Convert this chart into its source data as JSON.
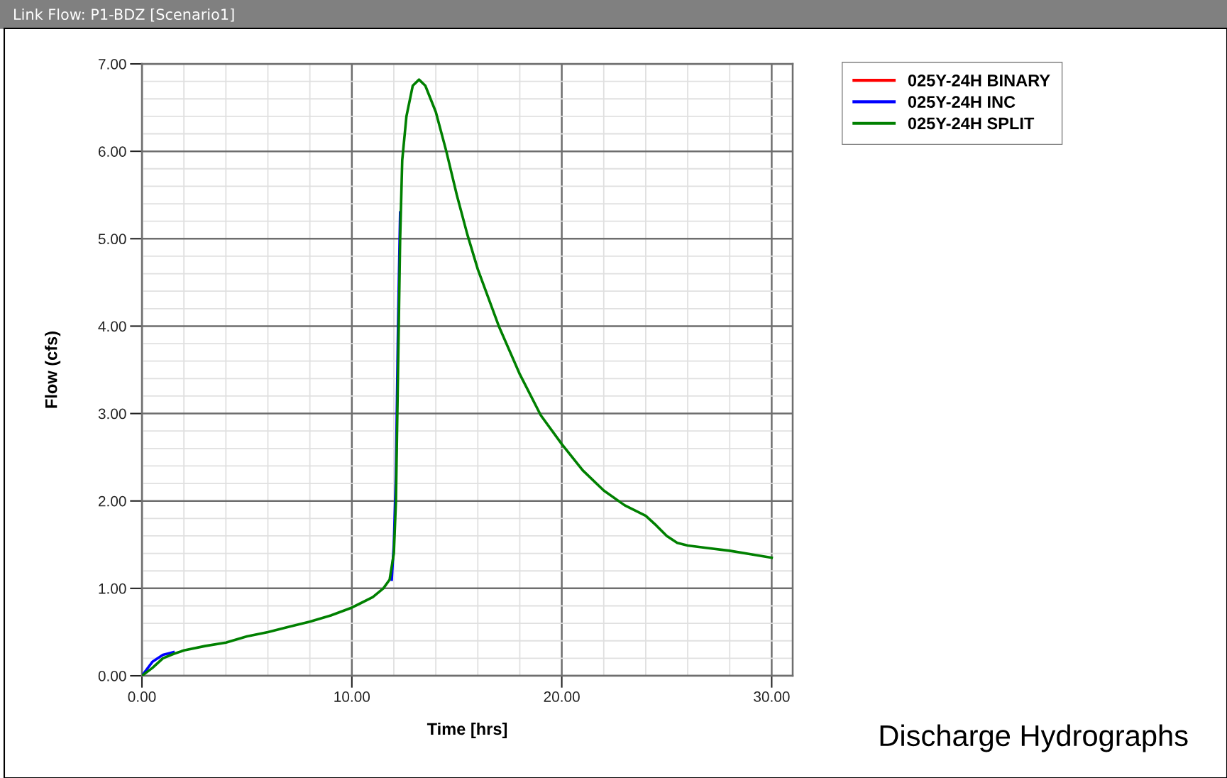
{
  "chart_data": {
    "type": "line",
    "title": "Link Flow: P1-BDZ [Scenario1]",
    "xlabel": "Time [hrs]",
    "ylabel": "Flow (cfs)",
    "annotations": [
      "Discharge Hydrographs"
    ],
    "x": [
      0,
      0.5,
      1,
      1.5,
      2,
      3,
      4,
      5,
      6,
      7,
      8,
      9,
      10,
      11,
      11.5,
      11.8,
      12,
      12.1,
      12.2,
      12.3,
      12.4,
      12.6,
      12.9,
      13.2,
      13.5,
      14,
      14.5,
      15,
      15.5,
      16,
      17,
      18,
      19,
      20,
      21,
      22,
      23,
      24,
      24.5,
      25,
      25.5,
      26,
      27,
      28,
      29,
      30
    ],
    "series": [
      {
        "name": "025Y-24H BINARY",
        "color": "#ff0000",
        "values": [
          null,
          null,
          null,
          null,
          null,
          null,
          null,
          null,
          null,
          null,
          null,
          null,
          null,
          null,
          null,
          null,
          null,
          null,
          null,
          null,
          null,
          null,
          null,
          null,
          null,
          null,
          null,
          null,
          null,
          null,
          null,
          null,
          null,
          null,
          null,
          null,
          null,
          null,
          null,
          null,
          null,
          null,
          null,
          null,
          null,
          null
        ]
      },
      {
        "name": "025Y-24H INC",
        "color": "#0000ff",
        "x": [
          0,
          0.5,
          1,
          1.5,
          11.7,
          11.9,
          12.0,
          12.1,
          12.2,
          12.3
        ],
        "values": [
          0,
          0.16,
          0.24,
          0.27,
          null,
          1.1,
          1.5,
          2.3,
          4.0,
          5.3
        ]
      },
      {
        "name": "025Y-24H SPLIT",
        "color": "#008000",
        "values": [
          0,
          0.09,
          0.2,
          0.25,
          0.29,
          0.34,
          0.38,
          0.45,
          0.5,
          0.56,
          0.62,
          0.69,
          0.78,
          0.9,
          1.0,
          1.1,
          1.4,
          2.0,
          3.5,
          5.0,
          5.9,
          6.4,
          6.75,
          6.82,
          6.75,
          6.45,
          6.0,
          5.5,
          5.05,
          4.65,
          4.0,
          3.45,
          2.98,
          2.65,
          2.35,
          2.12,
          1.95,
          1.83,
          1.72,
          1.6,
          1.52,
          1.49,
          1.46,
          1.43,
          1.39,
          1.35
        ]
      }
    ],
    "xlim": [
      0,
      31
    ],
    "xticks": [
      {
        "value": 0,
        "label": "0.00"
      },
      {
        "value": 10,
        "label": "10.00"
      },
      {
        "value": 20,
        "label": "20.00"
      },
      {
        "value": 30,
        "label": "30.00"
      }
    ],
    "ylim": [
      0,
      7
    ],
    "yticks": [
      {
        "value": 0,
        "label": "0.00"
      },
      {
        "value": 1,
        "label": "1.00"
      },
      {
        "value": 2,
        "label": "2.00"
      },
      {
        "value": 3,
        "label": "3.00"
      },
      {
        "value": 4,
        "label": "4.00"
      },
      {
        "value": 5,
        "label": "5.00"
      },
      {
        "value": 6,
        "label": "6.00"
      },
      {
        "value": 7,
        "label": "7.00"
      }
    ],
    "grid": true,
    "legend": "top right",
    "marker": "none",
    "line_style": "solid"
  }
}
